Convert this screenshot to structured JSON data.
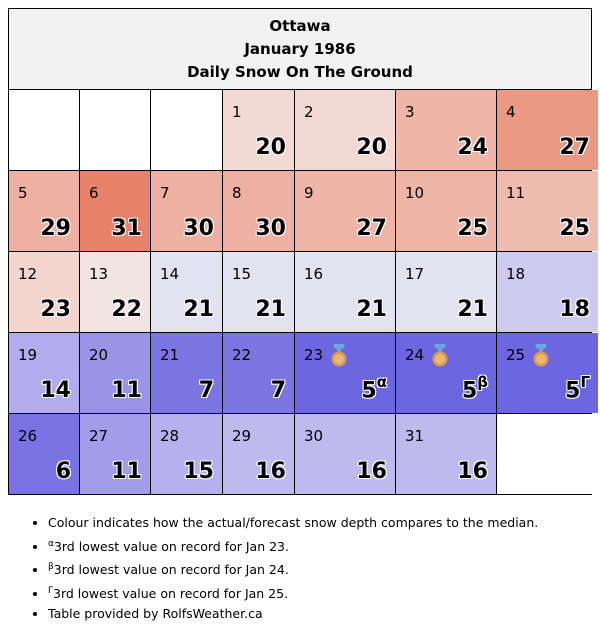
{
  "header": {
    "city": "Ottawa",
    "period": "January 1986",
    "subtitle": "Daily Snow On The Ground"
  },
  "cells": [
    {
      "day": "",
      "value": "",
      "color": "#ffffff"
    },
    {
      "day": "",
      "value": "",
      "color": "#ffffff"
    },
    {
      "day": "",
      "value": "",
      "color": "#ffffff"
    },
    {
      "day": "1",
      "value": "20",
      "color": "#f2d9d4"
    },
    {
      "day": "2",
      "value": "20",
      "color": "#f2d9d4"
    },
    {
      "day": "3",
      "value": "24",
      "color": "#efb5a6"
    },
    {
      "day": "4",
      "value": "27",
      "color": "#ea9a83"
    },
    {
      "day": "5",
      "value": "29",
      "color": "#eeb0a1"
    },
    {
      "day": "6",
      "value": "31",
      "color": "#e8826a"
    },
    {
      "day": "7",
      "value": "30",
      "color": "#eeb0a1"
    },
    {
      "day": "8",
      "value": "30",
      "color": "#eeb0a1"
    },
    {
      "day": "9",
      "value": "27",
      "color": "#efb5a6"
    },
    {
      "day": "10",
      "value": "25",
      "color": "#efb5a6"
    },
    {
      "day": "11",
      "value": "25",
      "color": "#efbbae"
    },
    {
      "day": "12",
      "value": "23",
      "color": "#f2d5cf"
    },
    {
      "day": "13",
      "value": "22",
      "color": "#f2e4e1"
    },
    {
      "day": "14",
      "value": "21",
      "color": "#e3e2f0"
    },
    {
      "day": "15",
      "value": "21",
      "color": "#e3e2f0"
    },
    {
      "day": "16",
      "value": "21",
      "color": "#e3e2f0"
    },
    {
      "day": "17",
      "value": "21",
      "color": "#e3e2f0"
    },
    {
      "day": "18",
      "value": "18",
      "color": "#cdc9ef"
    },
    {
      "day": "19",
      "value": "14",
      "color": "#b2aced"
    },
    {
      "day": "20",
      "value": "11",
      "color": "#9a94e9"
    },
    {
      "day": "21",
      "value": "7",
      "color": "#7c76e2"
    },
    {
      "day": "22",
      "value": "7",
      "color": "#7c76e2"
    },
    {
      "day": "23",
      "value": "5",
      "mark": "α",
      "medal": true,
      "color": "#6c66e0"
    },
    {
      "day": "24",
      "value": "5",
      "mark": "β",
      "medal": true,
      "color": "#6c66e0"
    },
    {
      "day": "25",
      "value": "5",
      "mark": "Γ",
      "medal": true,
      "color": "#6c66e0"
    },
    {
      "day": "26",
      "value": "6",
      "color": "#7972e2"
    },
    {
      "day": "27",
      "value": "11",
      "color": "#a29ce9"
    },
    {
      "day": "28",
      "value": "15",
      "color": "#b6b1ee"
    },
    {
      "day": "29",
      "value": "16",
      "color": "#bebaee"
    },
    {
      "day": "30",
      "value": "16",
      "color": "#bebaee"
    },
    {
      "day": "31",
      "value": "16",
      "color": "#bebaee"
    },
    {
      "day": "",
      "value": "",
      "color": "#ffffff"
    }
  ],
  "notes": [
    {
      "sup": "",
      "text": "Colour indicates how the actual/forecast snow depth compares to the median."
    },
    {
      "sup": "α",
      "text": "3rd lowest value on record for Jan 23."
    },
    {
      "sup": "β",
      "text": "3rd lowest value on record for Jan 24."
    },
    {
      "sup": "Γ",
      "text": "3rd lowest value on record for Jan 25."
    },
    {
      "sup": "",
      "text": "Table provided by RolfsWeather.ca"
    }
  ],
  "icons": {
    "medal": "bronze-medal-icon"
  },
  "colors": {
    "medal_ribbon": "#6aa9d8",
    "medal_face": "#d99b52"
  }
}
